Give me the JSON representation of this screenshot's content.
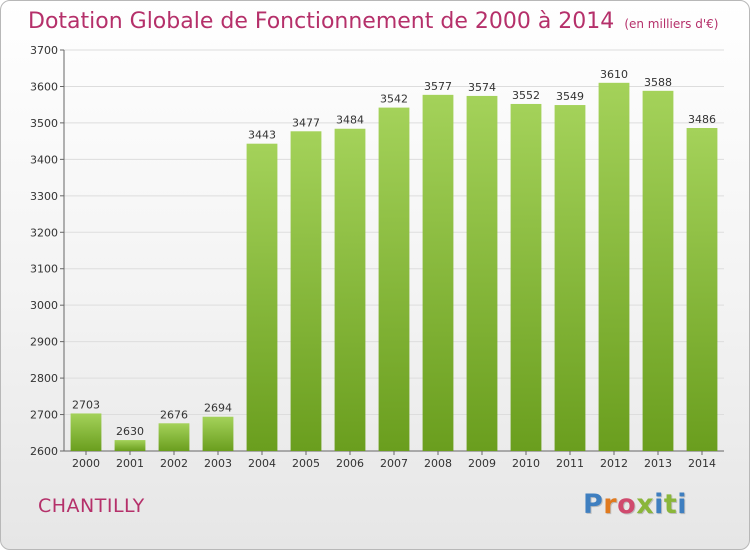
{
  "title": "Dotation Globale de Fonctionnement de 2000 à 2014",
  "subtitle": "(en milliers d'€)",
  "commune": "CHANTILLY",
  "logo_text": "Proxiti",
  "logo_colors": [
    "#3f7fc0",
    "#e07a1f",
    "#d04a6e",
    "#8ab63a",
    "#3f7fc0",
    "#8ab63a",
    "#3f7fc0"
  ],
  "colors": {
    "title": "#b5306a",
    "bar_top": "#a4d25a",
    "bar_bottom": "#6a9e1e",
    "grid": "#dddddd"
  },
  "chart_data": {
    "type": "bar",
    "categories": [
      "2000",
      "2001",
      "2002",
      "2003",
      "2004",
      "2005",
      "2006",
      "2007",
      "2008",
      "2009",
      "2010",
      "2011",
      "2012",
      "2013",
      "2014"
    ],
    "values": [
      2703,
      2630,
      2676,
      2694,
      3443,
      3477,
      3484,
      3542,
      3577,
      3574,
      3552,
      3549,
      3610,
      3588,
      3486
    ],
    "ylim": [
      2600,
      3700
    ],
    "yticks": [
      2600,
      2700,
      2800,
      2900,
      3000,
      3100,
      3200,
      3300,
      3400,
      3500,
      3600,
      3700
    ],
    "grid": true,
    "data_labels": true
  }
}
